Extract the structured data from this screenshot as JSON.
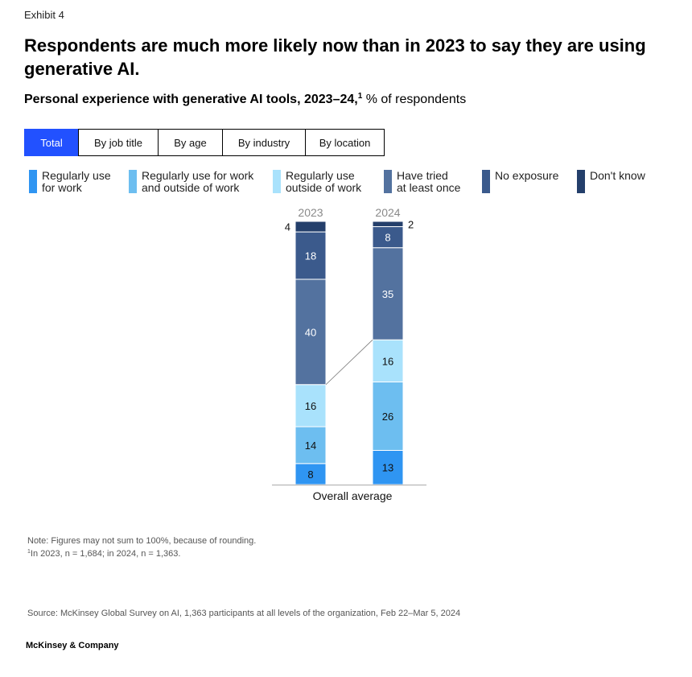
{
  "exhibit": "Exhibit 4",
  "title": "Respondents are much more likely now than in 2023 to say they are using generative AI.",
  "subtitle": {
    "bold": "Personal experience with generative AI tools, 2023–24,",
    "footnote_mark": "1",
    "unit": "% of respondents"
  },
  "tabs": [
    {
      "label": "Total",
      "active": true
    },
    {
      "label": "By job title",
      "active": false
    },
    {
      "label": "By age",
      "active": false
    },
    {
      "label": "By industry",
      "active": false
    },
    {
      "label": "By location",
      "active": false
    }
  ],
  "chart_data": {
    "type": "bar",
    "stacked": true,
    "categories": [
      "2023",
      "2024"
    ],
    "xlabel": "Overall average",
    "series": [
      {
        "name": "Regularly use for work",
        "color": "#2f95f2",
        "values": [
          8,
          13
        ]
      },
      {
        "name": "Regularly use for work and outside of work",
        "color": "#6dbef0",
        "values": [
          14,
          26
        ]
      },
      {
        "name": "Regularly use outside of work",
        "color": "#a9e2fc",
        "values": [
          16,
          16
        ]
      },
      {
        "name": "Have tried at least once",
        "color": "#53729f",
        "values": [
          40,
          35
        ]
      },
      {
        "name": "No exposure",
        "color": "#3b5a8c",
        "values": [
          18,
          8
        ]
      },
      {
        "name": "Don't know",
        "color": "#243f6b",
        "values": [
          4,
          2
        ]
      }
    ],
    "legend_labels": [
      "Regularly use\nfor work",
      "Regularly use for work\nand outside of work",
      "Regularly use\noutside of work",
      "Have tried\nat least once",
      "No exposure",
      "Don't know"
    ],
    "legend_position": "top",
    "grid": false
  },
  "notes": {
    "note": "Note: Figures may not sum to 100%, because of rounding.",
    "footnote_mark": "1",
    "footnote": "In 2023, n = 1,684; in 2024, n = 1,363."
  },
  "source": "Source: McKinsey Global Survey on AI, 1,363 participants at all levels of the organization, Feb 22–Mar 5, 2024",
  "logo": "McKinsey & Company"
}
